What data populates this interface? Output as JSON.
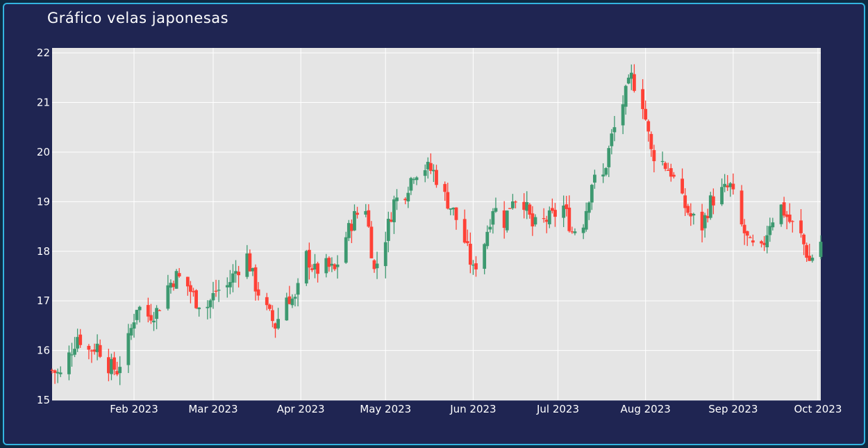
{
  "title": "Gráfico velas japonesas",
  "colors": {
    "background": "#1f2552",
    "plot_bg": "#e5e5e5",
    "grid": "#ffffff",
    "increasing": "#3d9970",
    "decreasing": "#ff4136",
    "border": "#33b4e0"
  },
  "chart_data": {
    "type": "candlestick",
    "title": "Gráfico velas japonesas",
    "xlabel": "",
    "ylabel": "",
    "ylim": [
      15,
      22.1
    ],
    "xlim": [
      "2023-01-03",
      "2023-10-02"
    ],
    "yticks": [
      15,
      16,
      17,
      18,
      19,
      20,
      21,
      22
    ],
    "xticks": [
      {
        "date": "2023-02-01",
        "label": "Feb 2023"
      },
      {
        "date": "2023-03-01",
        "label": "Mar 2023"
      },
      {
        "date": "2023-04-01",
        "label": "Apr 2023"
      },
      {
        "date": "2023-05-01",
        "label": "May 2023"
      },
      {
        "date": "2023-06-01",
        "label": "Jun 2023"
      },
      {
        "date": "2023-07-01",
        "label": "Jul 2023"
      },
      {
        "date": "2023-08-01",
        "label": "Aug 2023"
      },
      {
        "date": "2023-09-01",
        "label": "Sep 2023"
      },
      {
        "date": "2023-10-01",
        "label": "Oct 2023"
      }
    ],
    "anchors": [
      [
        "2023-01-03",
        15.6
      ],
      [
        "2023-01-06",
        15.5
      ],
      [
        "2023-01-09",
        15.9
      ],
      [
        "2023-01-12",
        16.3
      ],
      [
        "2023-01-16",
        16.0
      ],
      [
        "2023-01-19",
        16.1
      ],
      [
        "2023-01-23",
        15.7
      ],
      [
        "2023-01-26",
        15.6
      ],
      [
        "2023-01-30",
        16.2
      ],
      [
        "2023-02-02",
        16.9
      ],
      [
        "2023-02-06",
        16.7
      ],
      [
        "2023-02-09",
        16.8
      ],
      [
        "2023-02-13",
        17.3
      ],
      [
        "2023-02-16",
        17.5
      ],
      [
        "2023-02-20",
        17.3
      ],
      [
        "2023-02-23",
        17.0
      ],
      [
        "2023-02-27",
        16.9
      ],
      [
        "2023-03-02",
        17.2
      ],
      [
        "2023-03-06",
        17.3
      ],
      [
        "2023-03-09",
        17.6
      ],
      [
        "2023-03-13",
        17.9
      ],
      [
        "2023-03-16",
        17.3
      ],
      [
        "2023-03-20",
        16.8
      ],
      [
        "2023-03-23",
        16.5
      ],
      [
        "2023-03-27",
        17.1
      ],
      [
        "2023-03-30",
        17.0
      ],
      [
        "2023-04-03",
        17.9
      ],
      [
        "2023-04-06",
        17.6
      ],
      [
        "2023-04-10",
        17.7
      ],
      [
        "2023-04-13",
        17.6
      ],
      [
        "2023-04-17",
        18.3
      ],
      [
        "2023-04-20",
        18.7
      ],
      [
        "2023-04-24",
        18.9
      ],
      [
        "2023-04-27",
        17.6
      ],
      [
        "2023-05-01",
        18.3
      ],
      [
        "2023-05-04",
        19.0
      ],
      [
        "2023-05-08",
        19.2
      ],
      [
        "2023-05-11",
        19.6
      ],
      [
        "2023-05-15",
        19.7
      ],
      [
        "2023-05-18",
        19.6
      ],
      [
        "2023-05-22",
        19.1
      ],
      [
        "2023-05-25",
        18.8
      ],
      [
        "2023-05-29",
        18.2
      ],
      [
        "2023-06-01",
        17.6
      ],
      [
        "2023-06-05",
        18.2
      ],
      [
        "2023-06-08",
        18.9
      ],
      [
        "2023-06-12",
        18.6
      ],
      [
        "2023-06-15",
        19.1
      ],
      [
        "2023-06-19",
        19.0
      ],
      [
        "2023-06-22",
        18.5
      ],
      [
        "2023-06-26",
        18.6
      ],
      [
        "2023-06-29",
        18.7
      ],
      [
        "2023-07-03",
        18.9
      ],
      [
        "2023-07-06",
        18.4
      ],
      [
        "2023-07-10",
        18.6
      ],
      [
        "2023-07-13",
        19.4
      ],
      [
        "2023-07-17",
        19.5
      ],
      [
        "2023-07-20",
        20.3
      ],
      [
        "2023-07-24",
        21.0
      ],
      [
        "2023-07-27",
        21.5
      ],
      [
        "2023-07-31",
        21.0
      ],
      [
        "2023-08-03",
        20.0
      ],
      [
        "2023-08-07",
        19.8
      ],
      [
        "2023-08-10",
        19.6
      ],
      [
        "2023-08-14",
        19.0
      ],
      [
        "2023-08-17",
        18.7
      ],
      [
        "2023-08-21",
        18.5
      ],
      [
        "2023-08-24",
        19.0
      ],
      [
        "2023-08-28",
        19.2
      ],
      [
        "2023-08-31",
        19.3
      ],
      [
        "2023-09-04",
        18.5
      ],
      [
        "2023-09-07",
        18.1
      ],
      [
        "2023-09-11",
        18.0
      ],
      [
        "2023-09-14",
        18.6
      ],
      [
        "2023-09-18",
        18.9
      ],
      [
        "2023-09-21",
        18.6
      ],
      [
        "2023-09-25",
        18.3
      ],
      [
        "2023-09-28",
        17.8
      ],
      [
        "2023-10-02",
        18.2
      ]
    ]
  }
}
